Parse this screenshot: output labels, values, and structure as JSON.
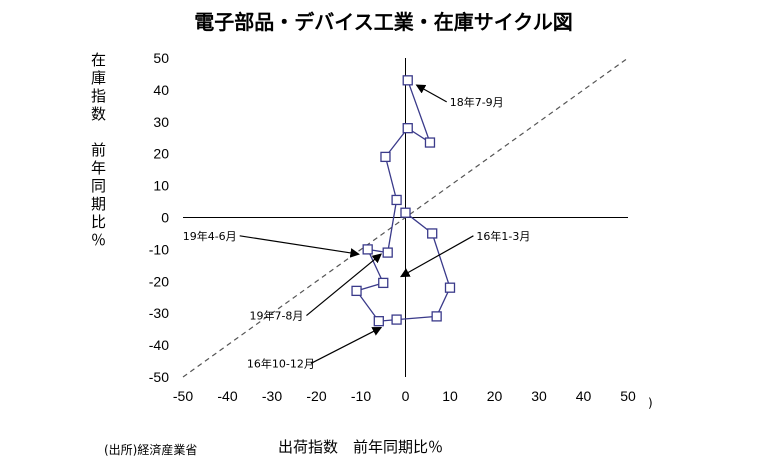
{
  "chart_data": {
    "type": "scatter",
    "title": "電子部品・デバイス工業・在庫サイクル図",
    "xlabel": "出荷指数　前年同期比％",
    "ylabel": "在庫指数　前年同期比％",
    "xlim": [
      -50,
      50
    ],
    "ylim": [
      -50,
      50
    ],
    "xticks": [
      -50,
      -40,
      -30,
      -20,
      -10,
      0,
      10,
      20,
      30,
      40,
      50
    ],
    "yticks": [
      -50,
      -40,
      -30,
      -20,
      -10,
      0,
      10,
      20,
      30,
      40,
      50
    ],
    "grid": false,
    "reference_line": {
      "style": "dashed",
      "from": [
        -50,
        -50
      ],
      "to": [
        50,
        50
      ]
    },
    "series": [
      {
        "color": "#3a3a8a",
        "marker": "square",
        "points": [
          {
            "x": 0,
            "y": 1.5
          },
          {
            "x": 6,
            "y": -5
          },
          {
            "x": 10,
            "y": -22
          },
          {
            "x": 7,
            "y": -31
          },
          {
            "x": -2,
            "y": -32
          },
          {
            "x": -6,
            "y": -32.5
          },
          {
            "x": -11,
            "y": -23
          },
          {
            "x": -5,
            "y": -20.5
          },
          {
            "x": -8.5,
            "y": -10
          },
          {
            "x": -4,
            "y": -11
          },
          {
            "x": -2,
            "y": 5.5
          },
          {
            "x": -4.5,
            "y": 19
          },
          {
            "x": 0.5,
            "y": 28
          },
          {
            "x": 5.5,
            "y": 23.5
          },
          {
            "x": 0.5,
            "y": 43
          }
        ]
      }
    ],
    "annotations": [
      {
        "text": "18年7-9月",
        "x": 16,
        "y": 35,
        "tx": 2.5,
        "ty": 41.5
      },
      {
        "text": "16年1-3月",
        "x": 22,
        "y": -7,
        "tx": -1,
        "ty": -18.5
      },
      {
        "text": "19年4-6月",
        "x": -44,
        "y": -7,
        "tx": -10.5,
        "ty": -11.5
      },
      {
        "text": "19年7-8月",
        "x": -29,
        "y": -32,
        "tx": -5.5,
        "ty": -11.5
      },
      {
        "text": "16年10-12月",
        "x": -28,
        "y": -47,
        "tx": -5.5,
        "ty": -34.5
      }
    ],
    "source": "(出所)経済産業省"
  },
  "stray_mark": ")"
}
